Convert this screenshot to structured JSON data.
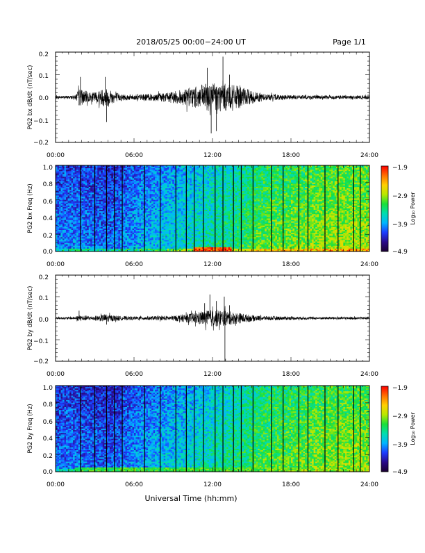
{
  "header": {
    "title": "2018/05/25  00:00−24:00 UT",
    "page": "Page 1/1"
  },
  "footer": {
    "xlabel": "Universal Time (hh:mm)"
  },
  "colors": {
    "trace": "#000000",
    "colormap": [
      "#1a0030",
      "#2a0a8a",
      "#1c3cff",
      "#00b4ff",
      "#00ddb0",
      "#18e03a",
      "#b8e800",
      "#ffd000",
      "#ff7000",
      "#ff0000"
    ]
  },
  "chart_data": [
    {
      "type": "line",
      "ylabel": "PG2 bx dB/dt (nT/sec)",
      "x_ticks": [
        "00:00",
        "06:00",
        "12:00",
        "18:00",
        "24:00"
      ],
      "y_ticks": [
        "0.2",
        "0.1",
        "0.0",
        "−0.1",
        "−0.2"
      ],
      "xlim": [
        0,
        24
      ],
      "ylim": [
        -0.2,
        0.2
      ],
      "envelope": {
        "hours": [
          0.0,
          1.5,
          1.8,
          2.2,
          2.8,
          3.5,
          3.8,
          4.2,
          5.0,
          6.0,
          8.0,
          9.0,
          10.0,
          10.5,
          11.0,
          11.5,
          12.0,
          12.5,
          13.0,
          13.5,
          14.0,
          15.0,
          16.0,
          18.0,
          20.0,
          22.0,
          24.0
        ],
        "amplitude": [
          0.006,
          0.008,
          0.04,
          0.03,
          0.02,
          0.035,
          0.045,
          0.03,
          0.015,
          0.012,
          0.018,
          0.025,
          0.04,
          0.045,
          0.05,
          0.06,
          0.07,
          0.065,
          0.06,
          0.055,
          0.05,
          0.03,
          0.015,
          0.01,
          0.008,
          0.008,
          0.008
        ]
      },
      "spikes": [
        {
          "hour": 1.9,
          "value": 0.09
        },
        {
          "hour": 3.8,
          "value": 0.09
        },
        {
          "hour": 3.9,
          "value": -0.11
        },
        {
          "hour": 11.6,
          "value": 0.13
        },
        {
          "hour": 11.9,
          "value": -0.16
        },
        {
          "hour": 12.3,
          "value": -0.15
        },
        {
          "hour": 12.8,
          "value": 0.18
        },
        {
          "hour": 13.3,
          "value": 0.1
        }
      ]
    },
    {
      "type": "heatmap",
      "ylabel": "PG2 bx Freq (Hz)",
      "x_ticks": [
        "00:00",
        "06:00",
        "12:00",
        "18:00",
        "24:00"
      ],
      "y_ticks": [
        "1.0",
        "0.8",
        "0.6",
        "0.4",
        "0.2",
        "0.0"
      ],
      "xlim": [
        0,
        24
      ],
      "ylim": [
        0,
        1
      ],
      "colorbar": {
        "label": "Log₁₀ Power",
        "ticks": [
          "−1.9",
          "−2.9",
          "−3.9",
          "−4.9"
        ],
        "range": [
          -4.9,
          -1.9
        ]
      },
      "background_level_by_hour": {
        "hours": [
          0,
          2,
          4,
          6,
          8,
          10,
          12,
          14,
          16,
          18,
          20,
          22,
          24
        ],
        "levels": [
          -4.15,
          -4.15,
          -4.25,
          -4.05,
          -3.9,
          -3.75,
          -3.6,
          -3.45,
          -3.25,
          -3.2,
          -3.1,
          -3.05,
          -3.05
        ]
      },
      "low_freq_enhancement": {
        "max_hz": 0.05,
        "hours": [
          10.5,
          13.5
        ],
        "level": -2.1
      },
      "dark_lines_hours": [
        1.9,
        3.0,
        3.9,
        4.5,
        5.1,
        6.8,
        8.0,
        9.2,
        10.0,
        10.6,
        11.3,
        12.2,
        12.8,
        13.6,
        14.2,
        15.1,
        16.5,
        17.4,
        18.6,
        19.3,
        20.6,
        21.6,
        22.8,
        23.3
      ]
    },
    {
      "type": "line",
      "ylabel": "PG2 by dB/dt (nT/sec)",
      "x_ticks": [
        "00:00",
        "06:00",
        "12:00",
        "18:00",
        "24:00"
      ],
      "y_ticks": [
        "0.2",
        "0.1",
        "0.0",
        "−0.1",
        "−0.2"
      ],
      "xlim": [
        0,
        24
      ],
      "ylim": [
        -0.2,
        0.2
      ],
      "envelope": {
        "hours": [
          0.0,
          1.5,
          1.8,
          2.2,
          2.8,
          3.5,
          3.8,
          4.2,
          5.0,
          6.0,
          8.0,
          9.0,
          10.0,
          10.5,
          11.0,
          11.5,
          12.0,
          12.5,
          13.0,
          13.5,
          14.0,
          15.0,
          16.0,
          18.0,
          20.0,
          22.0,
          24.0
        ],
        "amplitude": [
          0.005,
          0.006,
          0.015,
          0.012,
          0.01,
          0.015,
          0.02,
          0.015,
          0.01,
          0.008,
          0.01,
          0.012,
          0.02,
          0.025,
          0.03,
          0.035,
          0.04,
          0.04,
          0.035,
          0.03,
          0.025,
          0.015,
          0.01,
          0.008,
          0.006,
          0.006,
          0.006
        ]
      },
      "spikes": [
        {
          "hour": 1.8,
          "value": 0.035
        },
        {
          "hour": 3.9,
          "value": -0.03
        },
        {
          "hour": 11.4,
          "value": 0.07
        },
        {
          "hour": 11.8,
          "value": 0.11
        },
        {
          "hour": 12.3,
          "value": 0.08
        },
        {
          "hour": 12.9,
          "value": 0.1
        },
        {
          "hour": 12.95,
          "value": -0.2
        },
        {
          "hour": 13.3,
          "value": 0.06
        }
      ]
    },
    {
      "type": "heatmap",
      "ylabel": "PG2 by Freq (Hz)",
      "x_ticks": [
        "00:00",
        "06:00",
        "12:00",
        "18:00",
        "24:00"
      ],
      "y_ticks": [
        "1.0",
        "0.8",
        "0.6",
        "0.4",
        "0.2",
        "0.0"
      ],
      "xlim": [
        0,
        24
      ],
      "ylim": [
        0,
        1
      ],
      "colorbar": {
        "label": "Log₁₀ Power",
        "ticks": [
          "−1.9",
          "−2.9",
          "−3.9",
          "−4.9"
        ],
        "range": [
          -4.9,
          -1.9
        ]
      },
      "background_level_by_hour": {
        "hours": [
          0,
          2,
          4,
          6,
          8,
          10,
          12,
          14,
          16,
          18,
          20,
          22,
          24
        ],
        "levels": [
          -4.2,
          -4.2,
          -4.3,
          -4.1,
          -3.95,
          -3.8,
          -3.65,
          -3.5,
          -3.3,
          -3.25,
          -3.15,
          -3.1,
          -3.1
        ]
      },
      "low_freq_enhancement": {
        "max_hz": 0.05,
        "hours": [
          1.5,
          24
        ],
        "level": -3.2
      },
      "dark_lines_hours": [
        1.9,
        3.0,
        3.9,
        4.5,
        5.1,
        6.8,
        8.0,
        9.2,
        10.0,
        10.6,
        11.3,
        12.2,
        12.8,
        13.6,
        14.2,
        15.1,
        16.5,
        17.4,
        18.6,
        19.3,
        20.6,
        21.6,
        22.8,
        23.3
      ]
    }
  ]
}
